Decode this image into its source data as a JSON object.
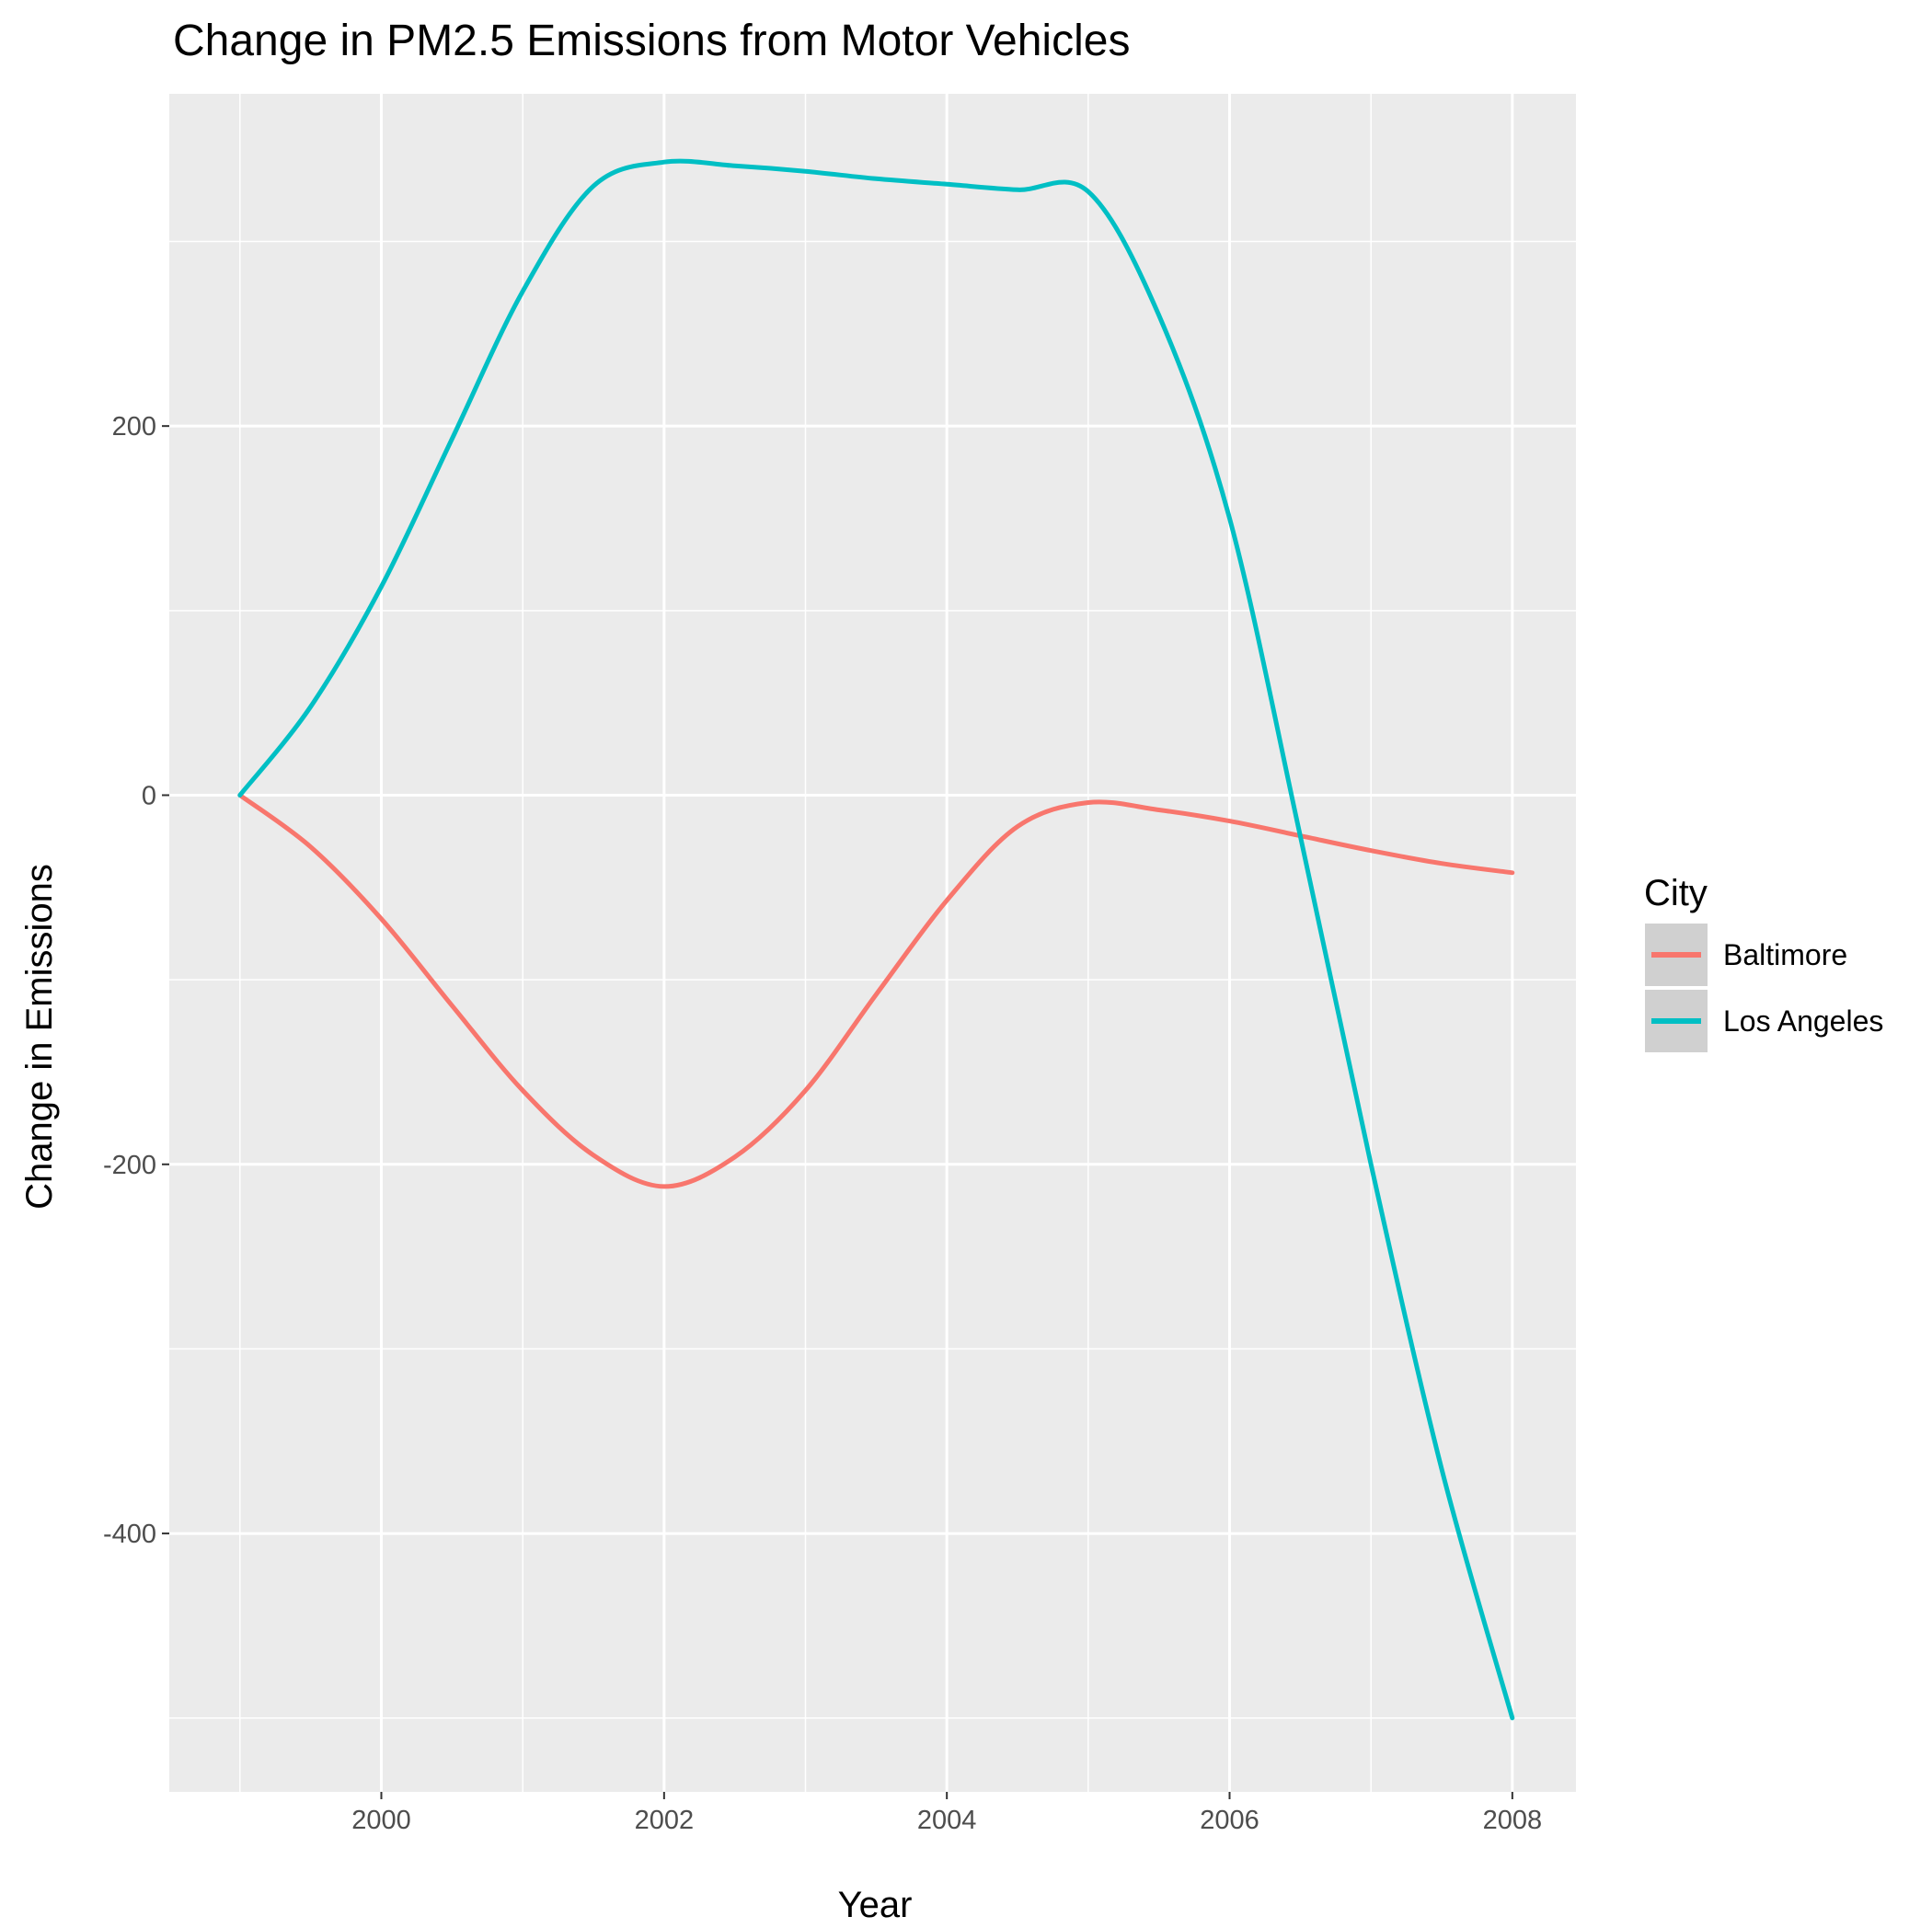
{
  "chart_data": {
    "type": "line",
    "title": "Change in PM2.5 Emissions from Motor Vehicles",
    "xlabel": "Year",
    "ylabel": "Change in Emissions",
    "xlim": [
      1998.5,
      2008.45
    ],
    "ylim": [
      -540,
      380
    ],
    "x_ticks": [
      2000,
      2002,
      2004,
      2006,
      2008
    ],
    "x_tick_labels": [
      "2000",
      "2002",
      "2004",
      "2006",
      "2008"
    ],
    "y_ticks": [
      -400,
      -200,
      0,
      200
    ],
    "y_tick_labels": [
      "-400",
      "-200",
      "0",
      "200"
    ],
    "grid": true,
    "legend": {
      "title": "City",
      "position": "right",
      "entries": [
        "Baltimore",
        "Los Angeles"
      ]
    },
    "series": [
      {
        "name": "Baltimore",
        "color": "#F8766D",
        "x": [
          1999,
          1999.5,
          2000,
          2000.5,
          2001,
          2001.5,
          2002,
          2002.5,
          2003,
          2003.5,
          2004,
          2004.5,
          2005,
          2005.5,
          2006,
          2006.5,
          2007,
          2007.5,
          2008
        ],
        "y": [
          0,
          -28,
          -67,
          -114,
          -160,
          -195,
          -212,
          -196,
          -160,
          -108,
          -57,
          -17,
          -4,
          -8,
          -14,
          -22,
          -30,
          -37,
          -42
        ]
      },
      {
        "name": "Los Angeles",
        "color": "#00BFC4",
        "x": [
          1999,
          1999.5,
          2000,
          2000.5,
          2001,
          2001.5,
          2002,
          2002.5,
          2003,
          2003.5,
          2004,
          2004.5,
          2005,
          2005.5,
          2006,
          2006.5,
          2007,
          2007.5,
          2008
        ],
        "y": [
          0,
          48,
          113,
          193,
          273,
          330,
          343,
          341,
          338,
          334,
          331,
          328,
          327,
          260,
          150,
          -22,
          -200,
          -365,
          -500
        ]
      }
    ]
  }
}
